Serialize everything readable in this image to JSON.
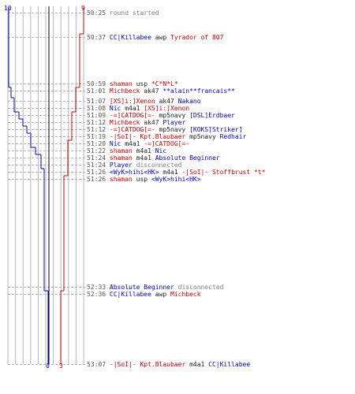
{
  "scoreboard": {
    "blue_start": "10",
    "red_start": "9",
    "blue_end": "0",
    "red_end": "3"
  },
  "colors": {
    "blue": "#0000cc",
    "red": "#cc0000",
    "grid": "#b4b4b4",
    "timeline": "#000000"
  },
  "events": [
    {
      "time": "50:25",
      "parts": [
        {
          "text": "round started",
          "color": "grey"
        }
      ]
    },
    {
      "time": "50:37",
      "parts": [
        {
          "text": "CC|Killabee",
          "color": "blue"
        },
        {
          "text": " awp ",
          "color": "dark"
        },
        {
          "text": "Tyrador of 807",
          "color": "red"
        }
      ]
    },
    {
      "time": "50:59",
      "parts": [
        {
          "text": "shaman",
          "color": "red"
        },
        {
          "text": " usp ",
          "color": "dark"
        },
        {
          "text": "*C*N*L*",
          "color": "red"
        }
      ]
    },
    {
      "time": "51:01",
      "parts": [
        {
          "text": "Michbeck",
          "color": "red"
        },
        {
          "text": " ak47 ",
          "color": "dark"
        },
        {
          "text": "**alain**francais**",
          "color": "blue"
        }
      ]
    },
    {
      "time": "51:07",
      "parts": [
        {
          "text": "[XS]i:]Xenon",
          "color": "red"
        },
        {
          "text": " ak47 ",
          "color": "dark"
        },
        {
          "text": "Nakano",
          "color": "blue"
        }
      ]
    },
    {
      "time": "51:08",
      "parts": [
        {
          "text": "Nic",
          "color": "blue"
        },
        {
          "text": " m4a1 ",
          "color": "dark"
        },
        {
          "text": "[XS]i:]Xenon",
          "color": "red"
        }
      ]
    },
    {
      "time": "51:09",
      "parts": [
        {
          "text": "-=]CATDOG[=-",
          "color": "red"
        },
        {
          "text": " mp5navy ",
          "color": "dark"
        },
        {
          "text": "[DSL]Erdbaer",
          "color": "blue"
        }
      ]
    },
    {
      "time": "51:12",
      "parts": [
        {
          "text": "Michbeck",
          "color": "red"
        },
        {
          "text": " ak47 ",
          "color": "dark"
        },
        {
          "text": "Player",
          "color": "blue"
        }
      ]
    },
    {
      "time": "51:12",
      "parts": [
        {
          "text": "-=]CATDOG[=-",
          "color": "red"
        },
        {
          "text": " mp5navy ",
          "color": "dark"
        },
        {
          "text": "[KOKS]Striker]",
          "color": "blue"
        }
      ]
    },
    {
      "time": "51:19",
      "parts": [
        {
          "text": "-|SoI|- Kpt.Blaubaer",
          "color": "red"
        },
        {
          "text": " mp5navy ",
          "color": "dark"
        },
        {
          "text": "Redhair",
          "color": "blue"
        }
      ]
    },
    {
      "time": "51:20",
      "parts": [
        {
          "text": "Nic",
          "color": "blue"
        },
        {
          "text": " m4a1 ",
          "color": "dark"
        },
        {
          "text": "-=]CATDOG[=-",
          "color": "red"
        }
      ]
    },
    {
      "time": "51:22",
      "parts": [
        {
          "text": "shaman",
          "color": "red"
        },
        {
          "text": " m4a1 ",
          "color": "dark"
        },
        {
          "text": "Nic",
          "color": "blue"
        }
      ]
    },
    {
      "time": "51:24",
      "parts": [
        {
          "text": "shaman",
          "color": "red"
        },
        {
          "text": " m4a1 ",
          "color": "dark"
        },
        {
          "text": "Absolute Beginner",
          "color": "blue"
        }
      ]
    },
    {
      "time": "51:24",
      "parts": [
        {
          "text": "Player",
          "color": "blue"
        },
        {
          "text": " disconnected",
          "color": "grey"
        }
      ]
    },
    {
      "time": "51:26",
      "parts": [
        {
          "text": "<WyK>hihi<HK>",
          "color": "blue"
        },
        {
          "text": " m4a1 ",
          "color": "dark"
        },
        {
          "text": "-|SoI|- Stoffbrust *t*",
          "color": "red"
        }
      ]
    },
    {
      "time": "51:26",
      "parts": [
        {
          "text": "shaman",
          "color": "red"
        },
        {
          "text": " usp ",
          "color": "dark"
        },
        {
          "text": "<WyK>hihi<HK>",
          "color": "blue"
        }
      ]
    },
    {
      "time": "52:33",
      "parts": [
        {
          "text": "Absolute Beginner",
          "color": "blue"
        },
        {
          "text": " disconnected",
          "color": "grey"
        }
      ]
    },
    {
      "time": "52:36",
      "parts": [
        {
          "text": "CC|Killabee",
          "color": "blue"
        },
        {
          "text": " awp ",
          "color": "dark"
        },
        {
          "text": "Michbeck",
          "color": "red"
        }
      ]
    },
    {
      "time": "53:07",
      "parts": [
        {
          "text": "-|SoI|- Kpt.Blaubaer",
          "color": "red"
        },
        {
          "text": " m4a1 ",
          "color": "dark"
        },
        {
          "text": "CC|Killabee",
          "color": "blue"
        }
      ]
    }
  ]
}
